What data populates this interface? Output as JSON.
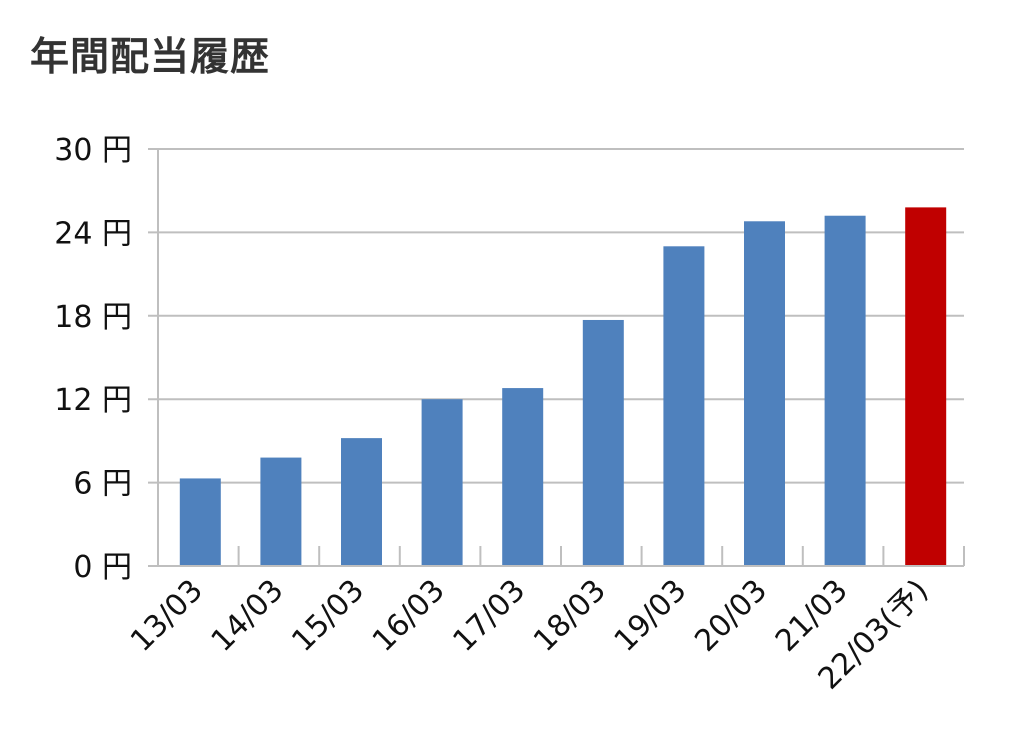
{
  "chart_data": {
    "type": "bar",
    "title": "年間配当履歴",
    "xlabel": "",
    "ylabel": "",
    "y_unit": "円",
    "ylim": [
      0,
      30
    ],
    "yticks": [
      0,
      6,
      12,
      18,
      24,
      30
    ],
    "ytick_labels": [
      "0 円",
      "6 円",
      "12 円",
      "18 円",
      "24 円",
      "30 円"
    ],
    "grid": true,
    "legend": "none",
    "categories": [
      "13/03",
      "14/03",
      "15/03",
      "16/03",
      "17/03",
      "18/03",
      "19/03",
      "20/03",
      "21/03",
      "22/03(予)"
    ],
    "values": [
      6.3,
      7.8,
      9.2,
      12.0,
      12.8,
      17.7,
      23.0,
      24.8,
      25.2,
      25.8
    ],
    "colors": {
      "actual": "#4f81bd",
      "forecast": "#c00000",
      "grid": "#bfbfbf"
    },
    "forecast_index": 9
  }
}
